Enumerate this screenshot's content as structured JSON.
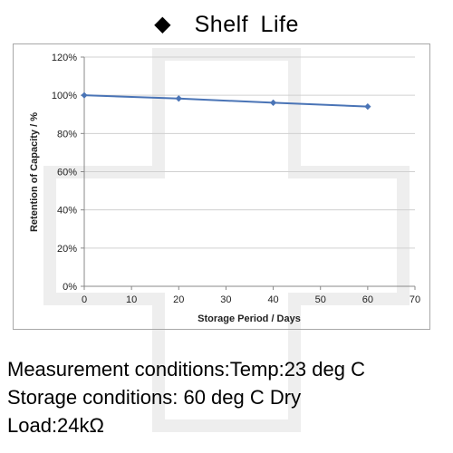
{
  "header": {
    "bullet_icon": "diamond-icon",
    "title": "Shelf  Life"
  },
  "chart_data": {
    "type": "line",
    "xlabel": "Storage Period / Days",
    "ylabel": "Retention of Capacity / %",
    "xlim": [
      0,
      70
    ],
    "ylim": [
      0,
      120
    ],
    "x_ticks": [
      "0",
      "10",
      "20",
      "30",
      "40",
      "50",
      "60",
      "70"
    ],
    "y_ticks": [
      "0%",
      "20%",
      "40%",
      "60%",
      "80%",
      "100%",
      "120%"
    ],
    "grid": true,
    "legend": "none",
    "series": [
      {
        "x": [
          0,
          20,
          40,
          60
        ],
        "y": [
          100,
          98.3,
          96.1,
          94.1
        ],
        "color": "#4a74b6"
      }
    ]
  },
  "conditions": {
    "measurement": "Measurement conditions:Temp:23 deg C",
    "storage": "Storage conditions: 60 deg C Dry",
    "load": "Load:24kΩ"
  }
}
